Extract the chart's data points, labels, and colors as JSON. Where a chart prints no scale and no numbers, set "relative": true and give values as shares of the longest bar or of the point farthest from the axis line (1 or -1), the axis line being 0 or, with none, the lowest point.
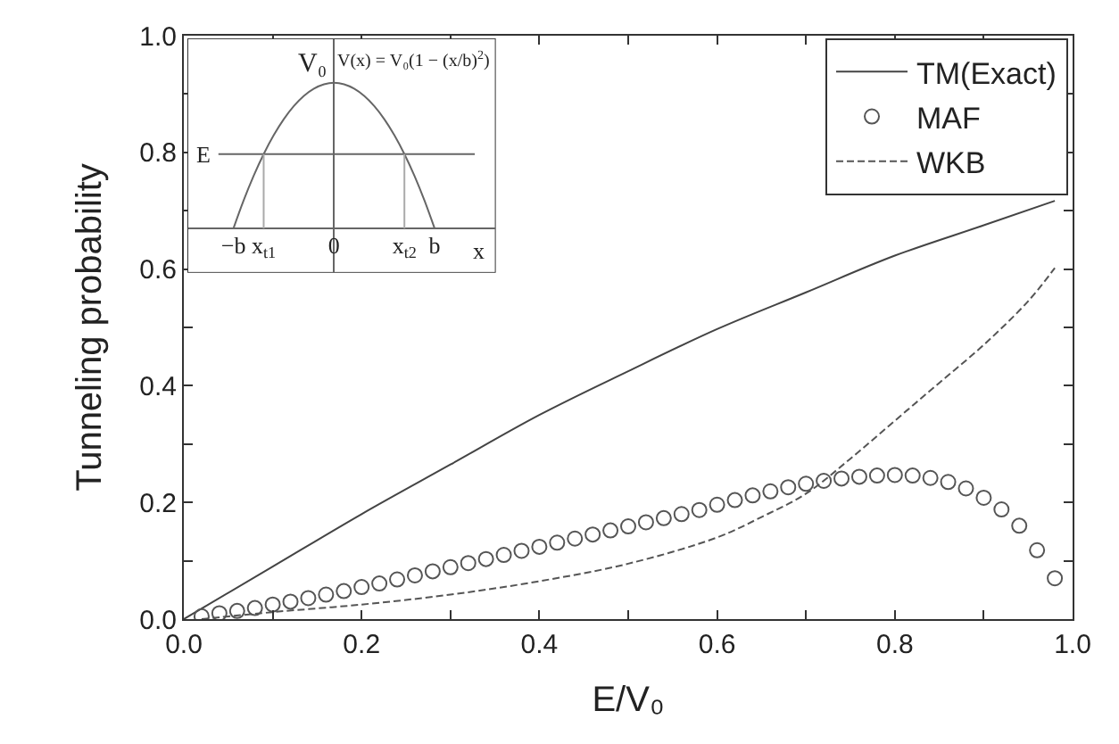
{
  "chart_data": [
    {
      "type": "line",
      "xlabel": "E/V₀",
      "ylabel": "Tunneling probability",
      "x": [
        0.02,
        0.04,
        0.06,
        0.08,
        0.1,
        0.12,
        0.14,
        0.16,
        0.18,
        0.2,
        0.22,
        0.24,
        0.26,
        0.28,
        0.3,
        0.32,
        0.34,
        0.36,
        0.38,
        0.4,
        0.42,
        0.44,
        0.46,
        0.48,
        0.5,
        0.52,
        0.54,
        0.56,
        0.58,
        0.6,
        0.62,
        0.64,
        0.66,
        0.68,
        0.7,
        0.72,
        0.74,
        0.76,
        0.78,
        0.8,
        0.82,
        0.84,
        0.86,
        0.88,
        0.9,
        0.92,
        0.94,
        0.96,
        0.98
      ],
      "series": [
        {
          "name": "TM(Exact)",
          "color": "#444444",
          "type": "line",
          "line_style": "solid",
          "marker": "none",
          "x": [
            0.0,
            0.1,
            0.2,
            0.3,
            0.4,
            0.5,
            0.6,
            0.7,
            0.8,
            0.9,
            0.98
          ],
          "values": [
            0.0,
            0.09,
            0.18,
            0.265,
            0.35,
            0.425,
            0.497,
            0.56,
            0.623,
            0.675,
            0.717
          ]
        },
        {
          "name": "MAF",
          "color": "#555555",
          "type": "scatter",
          "marker": "circle",
          "values": [
            0.005,
            0.01,
            0.014,
            0.019,
            0.025,
            0.03,
            0.036,
            0.042,
            0.048,
            0.055,
            0.061,
            0.068,
            0.075,
            0.082,
            0.089,
            0.096,
            0.103,
            0.11,
            0.117,
            0.124,
            0.131,
            0.138,
            0.145,
            0.152,
            0.159,
            0.166,
            0.173,
            0.18,
            0.187,
            0.196,
            0.204,
            0.212,
            0.219,
            0.226,
            0.232,
            0.237,
            0.241,
            0.244,
            0.246,
            0.247,
            0.246,
            0.242,
            0.235,
            0.224,
            0.208,
            0.188,
            0.16,
            0.118,
            0.07
          ]
        },
        {
          "name": "WKB",
          "color": "#555555",
          "type": "line",
          "line_style": "dashed",
          "marker": "none",
          "x": [
            0.02,
            0.1,
            0.2,
            0.3,
            0.4,
            0.5,
            0.6,
            0.65,
            0.7,
            0.75,
            0.8,
            0.85,
            0.9,
            0.95,
            0.98
          ],
          "values": [
            0.0,
            0.012,
            0.025,
            0.042,
            0.065,
            0.095,
            0.14,
            0.175,
            0.215,
            0.275,
            0.34,
            0.405,
            0.47,
            0.545,
            0.602
          ]
        }
      ],
      "xlim": [
        0.0,
        1.0
      ],
      "ylim": [
        0.0,
        1.0
      ],
      "xticks": [
        {
          "value": 0.0,
          "label": "0.0"
        },
        {
          "value": 0.1,
          "label": null
        },
        0.2,
        {
          "value": 0.3,
          "label": null
        },
        0.4,
        {
          "value": 0.5,
          "label": null
        },
        0.6,
        {
          "value": 0.7,
          "label": null
        },
        0.8,
        {
          "value": 0.9,
          "label": null
        },
        {
          "value": 1.0,
          "label": "1.0"
        }
      ],
      "yticks": [
        {
          "value": 0.0,
          "label": "0.0"
        },
        {
          "value": 0.1,
          "label": null
        },
        0.2,
        {
          "value": 0.3,
          "label": null
        },
        0.4,
        {
          "value": 0.5,
          "label": null
        },
        0.6,
        {
          "value": 0.7,
          "label": null
        },
        0.8,
        {
          "value": 0.9,
          "label": null
        },
        {
          "value": 1.0,
          "label": "1.0"
        }
      ],
      "grid": false,
      "legend": "top right"
    },
    {
      "type": "line",
      "relative": true,
      "xlabel": "x",
      "categories": [
        "−b",
        null,
        null,
        "x$_{t1}$",
        null,
        null,
        null,
        null,
        null,
        null,
        "0",
        null,
        null,
        null,
        null,
        null,
        null,
        "x$_{t2}$",
        null,
        null,
        "b"
      ],
      "series": [
        {
          "color": "#666666",
          "values": [
            0.0,
            0.19,
            0.36,
            0.51,
            0.64,
            0.75,
            0.84,
            0.91,
            0.96,
            0.99,
            1.0,
            0.99,
            0.96,
            0.91,
            0.84,
            0.75,
            0.64,
            0.51,
            0.36,
            0.19,
            0.0
          ]
        }
      ],
      "ref_lines": [
        {
          "axis": "y",
          "value": 0.51,
          "label": "E",
          "color": "#666666"
        },
        {
          "axis": "x",
          "value": "x$_{t1}$",
          "color": "#aaaaaa"
        },
        {
          "axis": "x",
          "value": "x$_{t2}$",
          "color": "#aaaaaa"
        }
      ],
      "annotations": [
        {
          "text": "V₀",
          "x": "0",
          "y": 1.0
        },
        "V(x) = V₀(1 − (x/b)$^{2}$)"
      ],
      "grid": false
    }
  ]
}
